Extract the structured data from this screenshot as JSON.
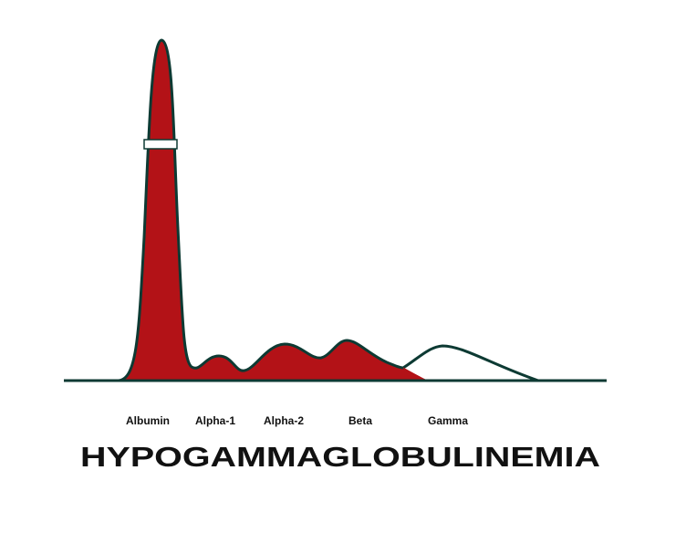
{
  "diagram": {
    "title": "HYPOGAMMAGLOBULINEMIA",
    "fractions": [
      {
        "label": "Albumin"
      },
      {
        "label": "Alpha-1"
      },
      {
        "label": "Alpha-2"
      },
      {
        "label": "Beta"
      },
      {
        "label": "Gamma"
      }
    ],
    "colors": {
      "fill": "#b31217",
      "outline": "#0d3a33",
      "baseline": "#0d3a33",
      "gamma_fill": "#ffffff",
      "background": "#ffffff"
    }
  }
}
